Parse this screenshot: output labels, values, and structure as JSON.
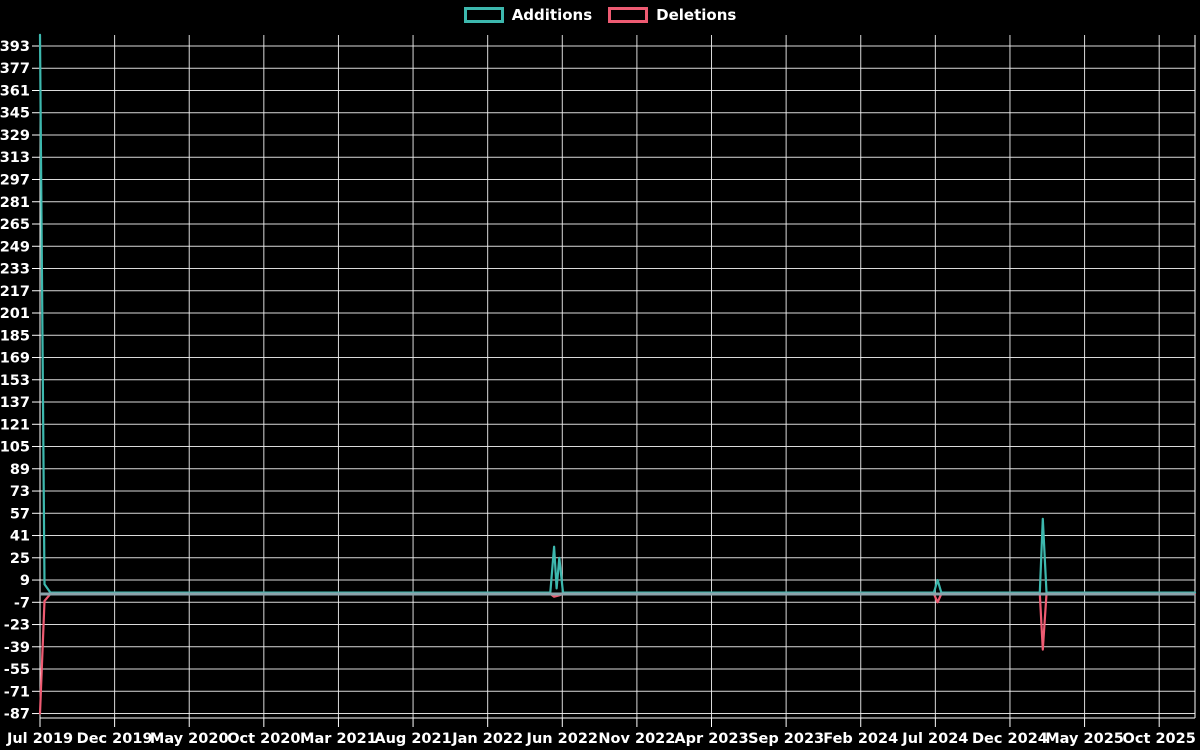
{
  "chart_data": {
    "type": "line",
    "title": "",
    "legend_position": "top-center",
    "grid": true,
    "colors": {
      "background": "#000000",
      "grid": "#f2f2f2",
      "text": "#ffffff",
      "additions": "#3db8ae",
      "deletions": "#ee5b72",
      "zero_baseline": "#8ba3ab"
    },
    "legend": [
      {
        "name": "Additions",
        "color": "#3db8ae"
      },
      {
        "name": "Deletions",
        "color": "#ee5b72"
      }
    ],
    "x_tick_labels": [
      "Jul 2019",
      "Dec 2019",
      "May 2020",
      "Oct 2020",
      "Mar 2021",
      "Aug 2021",
      "Jan 2022",
      "Jun 2022",
      "Nov 2022",
      "Apr 2023",
      "Sep 2023",
      "Feb 2024",
      "Jul 2024",
      "Dec 2024",
      "May 2025",
      "Oct 2025"
    ],
    "x_tick_months": [
      0,
      5,
      10,
      15,
      20,
      25,
      30,
      35,
      40,
      45,
      50,
      55,
      60,
      65,
      70,
      75
    ],
    "x_domain_months": [
      0,
      77.4
    ],
    "y_ticks": [
      393,
      377,
      361,
      345,
      329,
      313,
      297,
      281,
      265,
      249,
      233,
      217,
      201,
      185,
      169,
      153,
      137,
      121,
      105,
      89,
      73,
      57,
      41,
      25,
      9,
      -7,
      -23,
      -39,
      -55,
      -71,
      -87
    ],
    "ylim": [
      -90.2,
      400.9
    ],
    "baseline": {
      "value": -1
    },
    "series": [
      {
        "name": "Additions",
        "color": "#3db8ae",
        "points": [
          [
            0,
            401
          ],
          [
            0.3,
            6
          ],
          [
            0.7,
            0
          ],
          [
            34.2,
            0
          ],
          [
            34.45,
            33
          ],
          [
            34.62,
            3
          ],
          [
            34.8,
            25
          ],
          [
            35.05,
            0
          ],
          [
            59.9,
            0
          ],
          [
            60.15,
            9
          ],
          [
            60.4,
            0
          ],
          [
            67.0,
            0
          ],
          [
            67.2,
            53
          ],
          [
            67.45,
            0
          ],
          [
            77.4,
            0
          ]
        ]
      },
      {
        "name": "Deletions",
        "color": "#ee5b72",
        "points": [
          [
            0,
            -87
          ],
          [
            0.3,
            -6
          ],
          [
            0.7,
            -1
          ],
          [
            34.2,
            -1
          ],
          [
            34.45,
            -3
          ],
          [
            34.8,
            -2
          ],
          [
            35.05,
            -1
          ],
          [
            59.9,
            -1
          ],
          [
            60.15,
            -7
          ],
          [
            60.4,
            -1
          ],
          [
            67.0,
            -1
          ],
          [
            67.2,
            -41
          ],
          [
            67.45,
            -1
          ],
          [
            77.4,
            -1
          ]
        ]
      }
    ]
  }
}
